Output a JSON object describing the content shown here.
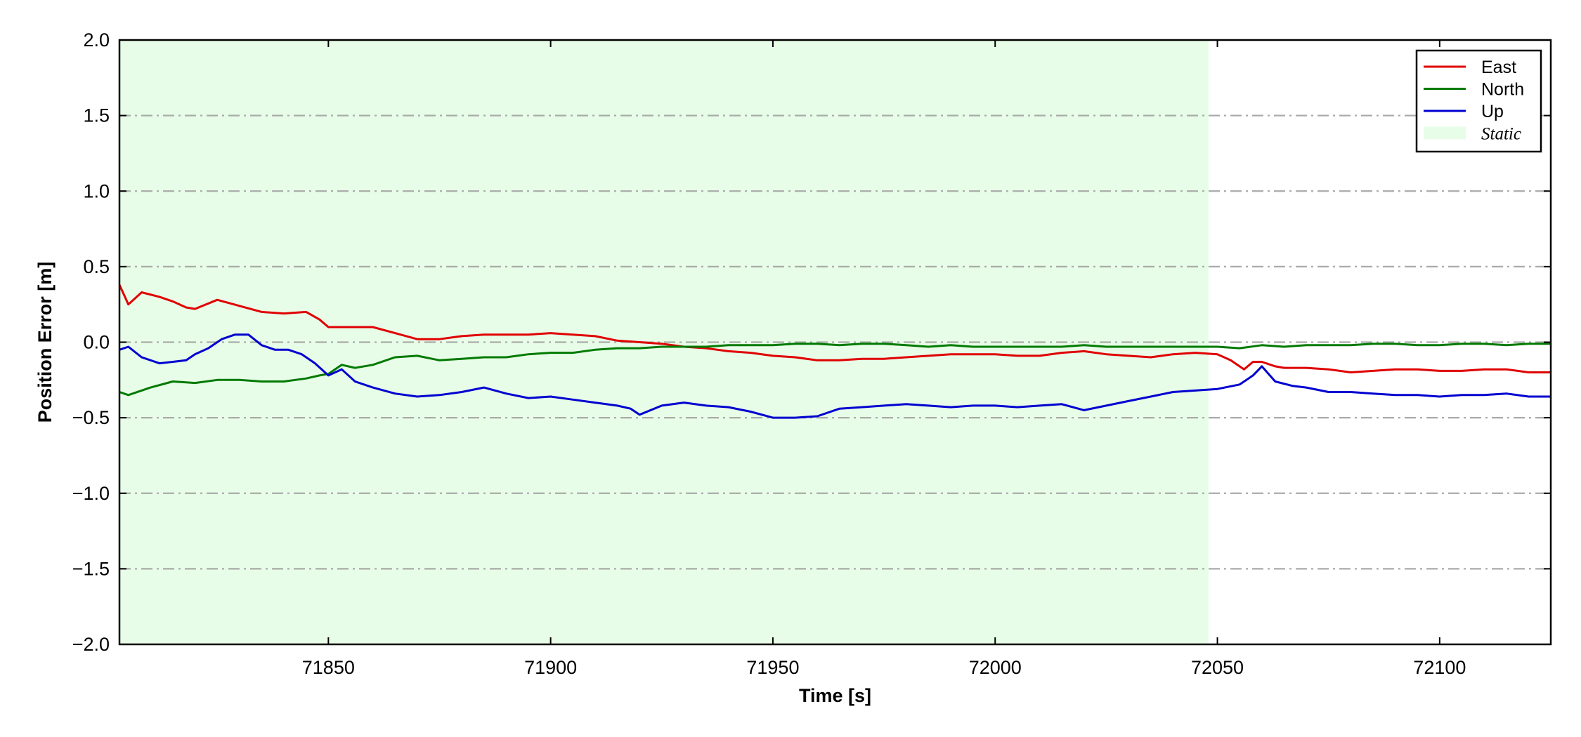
{
  "chart_data": {
    "type": "line",
    "xlabel": "Time [s]",
    "ylabel": "Position Error [m]",
    "xlim": [
      71803,
      72125
    ],
    "ylim": [
      -2.0,
      2.0
    ],
    "x_ticks": [
      71850,
      71900,
      71950,
      72000,
      72050,
      72100
    ],
    "x_tick_labels": [
      "71850",
      "71900",
      "71950",
      "72000",
      "72050",
      "72100"
    ],
    "y_ticks": [
      2.0,
      1.5,
      1.0,
      0.5,
      0.0,
      -0.5,
      -1.0,
      -1.5,
      -2.0
    ],
    "y_tick_labels": [
      "2.0",
      "1.5",
      "1.0",
      "0.5",
      "0.0",
      "−0.5",
      "−1.0",
      "−1.5",
      "−2.0"
    ],
    "grid": "horizontal dash-dot",
    "legend_position": "top-right",
    "shaded_region": {
      "name": "Static",
      "x_start": 71803,
      "x_end": 72048,
      "color": "#e8fde8"
    },
    "series": [
      {
        "name": "East",
        "color": "#e00000",
        "x": [
          71803,
          71805,
          71808,
          71812,
          71815,
          71818,
          71820,
          71825,
          71830,
          71835,
          71840,
          71845,
          71848,
          71850,
          71855,
          71860,
          71865,
          71870,
          71875,
          71880,
          71885,
          71890,
          71895,
          71900,
          71905,
          71910,
          71915,
          71920,
          71925,
          71930,
          71935,
          71940,
          71945,
          71950,
          71955,
          71960,
          71965,
          71970,
          71975,
          71980,
          71985,
          71990,
          71995,
          72000,
          72005,
          72010,
          72015,
          72020,
          72025,
          72030,
          72035,
          72040,
          72045,
          72050,
          72053,
          72056,
          72058,
          72060,
          72063,
          72065,
          72070,
          72075,
          72080,
          72085,
          72090,
          72095,
          72100,
          72105,
          72110,
          72115,
          72120,
          72125
        ],
        "values": [
          0.38,
          0.25,
          0.33,
          0.3,
          0.27,
          0.23,
          0.22,
          0.28,
          0.24,
          0.2,
          0.19,
          0.2,
          0.15,
          0.1,
          0.1,
          0.1,
          0.06,
          0.02,
          0.02,
          0.04,
          0.05,
          0.05,
          0.05,
          0.06,
          0.05,
          0.04,
          0.01,
          0.0,
          -0.01,
          -0.03,
          -0.04,
          -0.06,
          -0.07,
          -0.09,
          -0.1,
          -0.12,
          -0.12,
          -0.11,
          -0.11,
          -0.1,
          -0.09,
          -0.08,
          -0.08,
          -0.08,
          -0.09,
          -0.09,
          -0.07,
          -0.06,
          -0.08,
          -0.09,
          -0.1,
          -0.08,
          -0.07,
          -0.08,
          -0.12,
          -0.18,
          -0.13,
          -0.13,
          -0.16,
          -0.17,
          -0.17,
          -0.18,
          -0.2,
          -0.19,
          -0.18,
          -0.18,
          -0.19,
          -0.19,
          -0.18,
          -0.18,
          -0.2,
          -0.2
        ]
      },
      {
        "name": "North",
        "color": "#007a00",
        "x": [
          71803,
          71805,
          71810,
          71815,
          71820,
          71825,
          71830,
          71835,
          71840,
          71845,
          71848,
          71850,
          71853,
          71856,
          71860,
          71865,
          71870,
          71875,
          71880,
          71885,
          71890,
          71895,
          71900,
          71905,
          71910,
          71915,
          71920,
          71925,
          71930,
          71935,
          71940,
          71945,
          71950,
          71955,
          71960,
          71965,
          71970,
          71975,
          71980,
          71985,
          71990,
          71995,
          72000,
          72005,
          72010,
          72015,
          72020,
          72025,
          72030,
          72035,
          72040,
          72045,
          72050,
          72055,
          72060,
          72065,
          72070,
          72075,
          72080,
          72085,
          72090,
          72095,
          72100,
          72105,
          72110,
          72115,
          72120,
          72125
        ],
        "values": [
          -0.33,
          -0.35,
          -0.3,
          -0.26,
          -0.27,
          -0.25,
          -0.25,
          -0.26,
          -0.26,
          -0.24,
          -0.22,
          -0.21,
          -0.15,
          -0.17,
          -0.15,
          -0.1,
          -0.09,
          -0.12,
          -0.11,
          -0.1,
          -0.1,
          -0.08,
          -0.07,
          -0.07,
          -0.05,
          -0.04,
          -0.04,
          -0.03,
          -0.03,
          -0.03,
          -0.02,
          -0.02,
          -0.02,
          -0.01,
          -0.01,
          -0.02,
          -0.01,
          -0.01,
          -0.02,
          -0.03,
          -0.02,
          -0.03,
          -0.03,
          -0.03,
          -0.03,
          -0.03,
          -0.02,
          -0.03,
          -0.03,
          -0.03,
          -0.03,
          -0.03,
          -0.03,
          -0.04,
          -0.02,
          -0.03,
          -0.02,
          -0.02,
          -0.02,
          -0.01,
          -0.01,
          -0.02,
          -0.02,
          -0.01,
          -0.01,
          -0.02,
          -0.01,
          -0.01
        ]
      },
      {
        "name": "Up",
        "color": "#0000d0",
        "x": [
          71803,
          71805,
          71808,
          71812,
          71815,
          71818,
          71820,
          71823,
          71826,
          71829,
          71832,
          71835,
          71838,
          71841,
          71844,
          71847,
          71850,
          71853,
          71856,
          71860,
          71865,
          71870,
          71875,
          71880,
          71885,
          71890,
          71895,
          71900,
          71905,
          71910,
          71915,
          71918,
          71920,
          71925,
          71930,
          71935,
          71940,
          71945,
          71950,
          71955,
          71960,
          71965,
          71970,
          71975,
          71980,
          71985,
          71990,
          71995,
          72000,
          72005,
          72010,
          72015,
          72020,
          72025,
          72030,
          72035,
          72040,
          72045,
          72050,
          72055,
          72058,
          72060,
          72063,
          72067,
          72070,
          72075,
          72080,
          72085,
          72090,
          72095,
          72100,
          72105,
          72110,
          72115,
          72120,
          72125
        ],
        "values": [
          -0.05,
          -0.03,
          -0.1,
          -0.14,
          -0.13,
          -0.12,
          -0.08,
          -0.04,
          0.02,
          0.05,
          0.05,
          -0.02,
          -0.05,
          -0.05,
          -0.08,
          -0.14,
          -0.22,
          -0.18,
          -0.26,
          -0.3,
          -0.34,
          -0.36,
          -0.35,
          -0.33,
          -0.3,
          -0.34,
          -0.37,
          -0.36,
          -0.38,
          -0.4,
          -0.42,
          -0.44,
          -0.48,
          -0.42,
          -0.4,
          -0.42,
          -0.43,
          -0.46,
          -0.5,
          -0.5,
          -0.49,
          -0.44,
          -0.43,
          -0.42,
          -0.41,
          -0.42,
          -0.43,
          -0.42,
          -0.42,
          -0.43,
          -0.42,
          -0.41,
          -0.45,
          -0.42,
          -0.39,
          -0.36,
          -0.33,
          -0.32,
          -0.31,
          -0.28,
          -0.22,
          -0.16,
          -0.26,
          -0.29,
          -0.3,
          -0.33,
          -0.33,
          -0.34,
          -0.35,
          -0.35,
          -0.36,
          -0.35,
          -0.35,
          -0.34,
          -0.36,
          -0.36
        ]
      }
    ]
  }
}
